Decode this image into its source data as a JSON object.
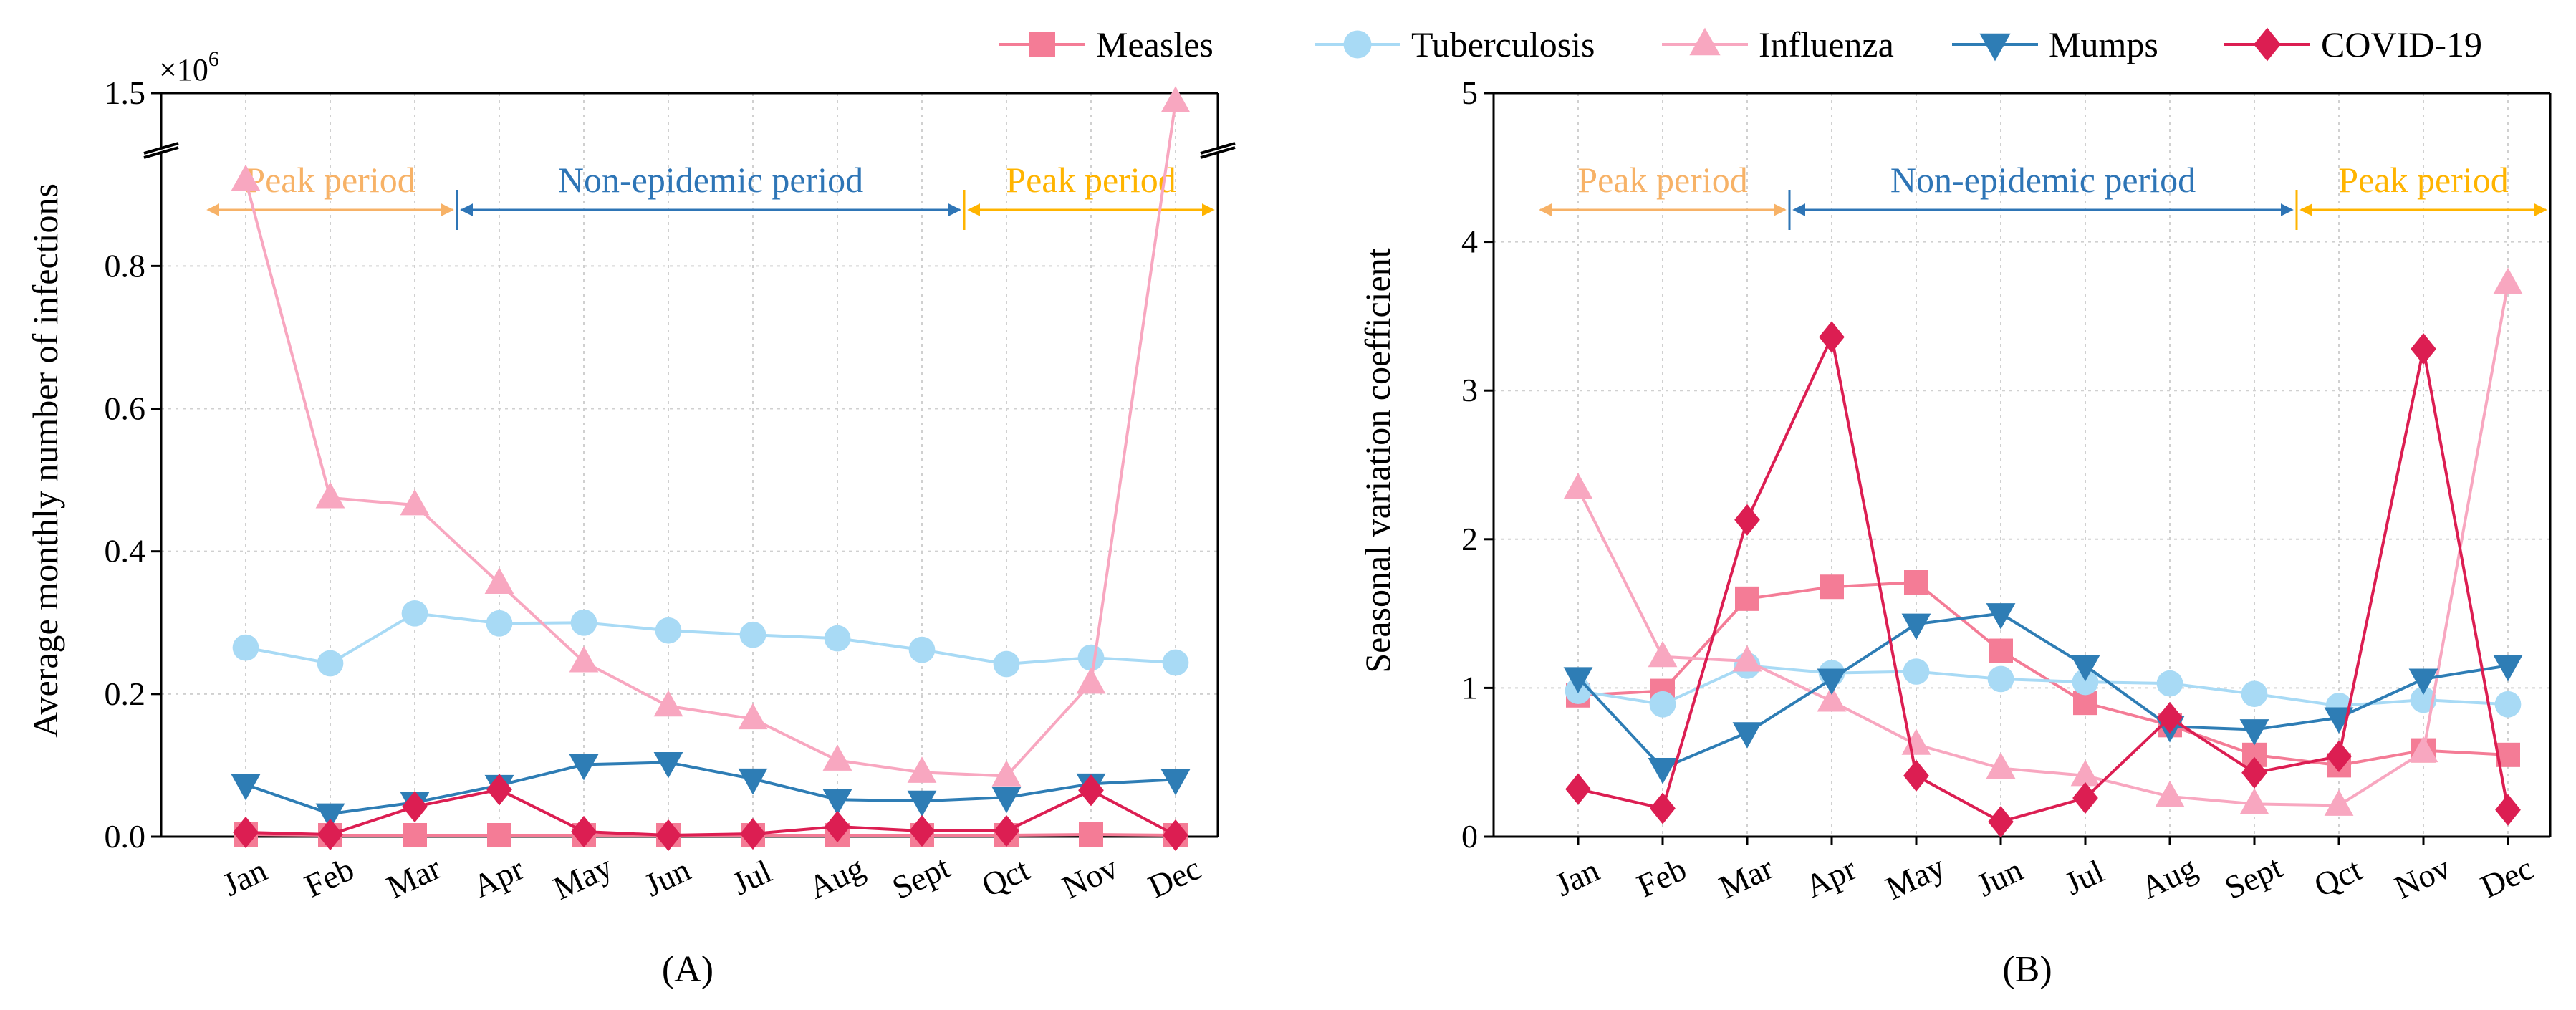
{
  "legend": [
    {
      "name": "Measles",
      "color": "#F47C96",
      "marker": "square"
    },
    {
      "name": "Tuberculosis",
      "color": "#A8DAF5",
      "marker": "circle"
    },
    {
      "name": "Influenza",
      "color": "#F8A7C0",
      "marker": "triangle-up"
    },
    {
      "name": "Mumps",
      "color": "#2E7DB5",
      "marker": "triangle-down"
    },
    {
      "name": "COVID-19",
      "color": "#DC1E52",
      "marker": "diamond"
    }
  ],
  "period_colors": {
    "peak": "#F7B267",
    "non_epidemic": "#2E75B6",
    "peak_right": "#FFB400"
  },
  "chart_data": [
    {
      "type": "line",
      "panel_label": "(A)",
      "ylabel": "Average monthly number of infections",
      "ymult": "×10",
      "ymult_exp": "6",
      "ylim": [
        0,
        1.5
      ],
      "axis_break": {
        "from": 0.95,
        "to": 1.5
      },
      "yticks": [
        "0.0",
        "0.2",
        "0.4",
        "0.6",
        "0.8"
      ],
      "ytop_label": "1.5",
      "categories": [
        "Jan",
        "Feb",
        "Mar",
        "Apr",
        "May",
        "Jun",
        "Jul",
        "Aug",
        "Sept",
        "Qct",
        "Nov",
        "Dec"
      ],
      "periods": [
        {
          "label": "Peak period",
          "kind": "peak",
          "start": 0,
          "end": 3
        },
        {
          "label": "Non-epidemic period",
          "kind": "non_epidemic",
          "start": 3,
          "end": 9
        },
        {
          "label": "Peak period",
          "kind": "peak_right",
          "start": 9,
          "end": 12
        }
      ],
      "series": [
        {
          "name": "Measles",
          "values": [
            0.003,
            0.002,
            0.002,
            0.002,
            0.002,
            0.002,
            0.002,
            0.002,
            0.002,
            0.002,
            0.003,
            0.002
          ]
        },
        {
          "name": "Tuberculosis",
          "values": [
            0.265,
            0.243,
            0.313,
            0.299,
            0.3,
            0.289,
            0.283,
            0.278,
            0.262,
            0.242,
            0.251,
            0.244
          ]
        },
        {
          "name": "Influenza",
          "values": [
            0.92,
            0.475,
            0.465,
            0.355,
            0.245,
            0.183,
            0.165,
            0.107,
            0.09,
            0.085,
            0.215,
            1.4
          ]
        },
        {
          "name": "Mumps",
          "values": [
            0.073,
            0.032,
            0.048,
            0.072,
            0.101,
            0.104,
            0.081,
            0.052,
            0.05,
            0.055,
            0.074,
            0.08
          ]
        },
        {
          "name": "COVID-19",
          "values": [
            0.006,
            0.003,
            0.042,
            0.066,
            0.007,
            0.002,
            0.004,
            0.014,
            0.008,
            0.008,
            0.065,
            0.002
          ]
        }
      ]
    },
    {
      "type": "line",
      "panel_label": "(B)",
      "ylabel": "Seasonal variation coefficient",
      "ylim": [
        0,
        5
      ],
      "yticks": [
        "0",
        "1",
        "2",
        "3",
        "4",
        "5"
      ],
      "categories": [
        "Jan",
        "Feb",
        "Mar",
        "Apr",
        "May",
        "Jun",
        "Jul",
        "Aug",
        "Sept",
        "Qct",
        "Nov",
        "Dec"
      ],
      "periods": [
        {
          "label": "Peak period",
          "kind": "peak",
          "start": 0,
          "end": 3
        },
        {
          "label": "Non-epidemic period",
          "kind": "non_epidemic",
          "start": 3,
          "end": 9
        },
        {
          "label": "Peak period",
          "kind": "peak_right",
          "start": 9,
          "end": 12
        }
      ],
      "series": [
        {
          "name": "Measles",
          "values": [
            0.95,
            0.98,
            1.6,
            1.68,
            1.71,
            1.25,
            0.9,
            0.75,
            0.55,
            0.48,
            0.58,
            0.55
          ]
        },
        {
          "name": "Tuberculosis",
          "values": [
            0.98,
            0.89,
            1.15,
            1.1,
            1.11,
            1.06,
            1.04,
            1.03,
            0.96,
            0.88,
            0.92,
            0.89
          ]
        },
        {
          "name": "Influenza",
          "values": [
            2.34,
            1.21,
            1.18,
            0.91,
            0.62,
            0.46,
            0.41,
            0.27,
            0.22,
            0.21,
            0.57,
            3.72
          ]
        },
        {
          "name": "Mumps",
          "values": [
            1.07,
            0.46,
            0.7,
            1.06,
            1.43,
            1.5,
            1.15,
            0.74,
            0.72,
            0.8,
            1.06,
            1.15
          ]
        },
        {
          "name": "COVID-19",
          "values": [
            0.32,
            0.19,
            2.13,
            3.36,
            0.41,
            0.1,
            0.26,
            0.8,
            0.43,
            0.54,
            3.28,
            0.18
          ]
        }
      ]
    }
  ]
}
